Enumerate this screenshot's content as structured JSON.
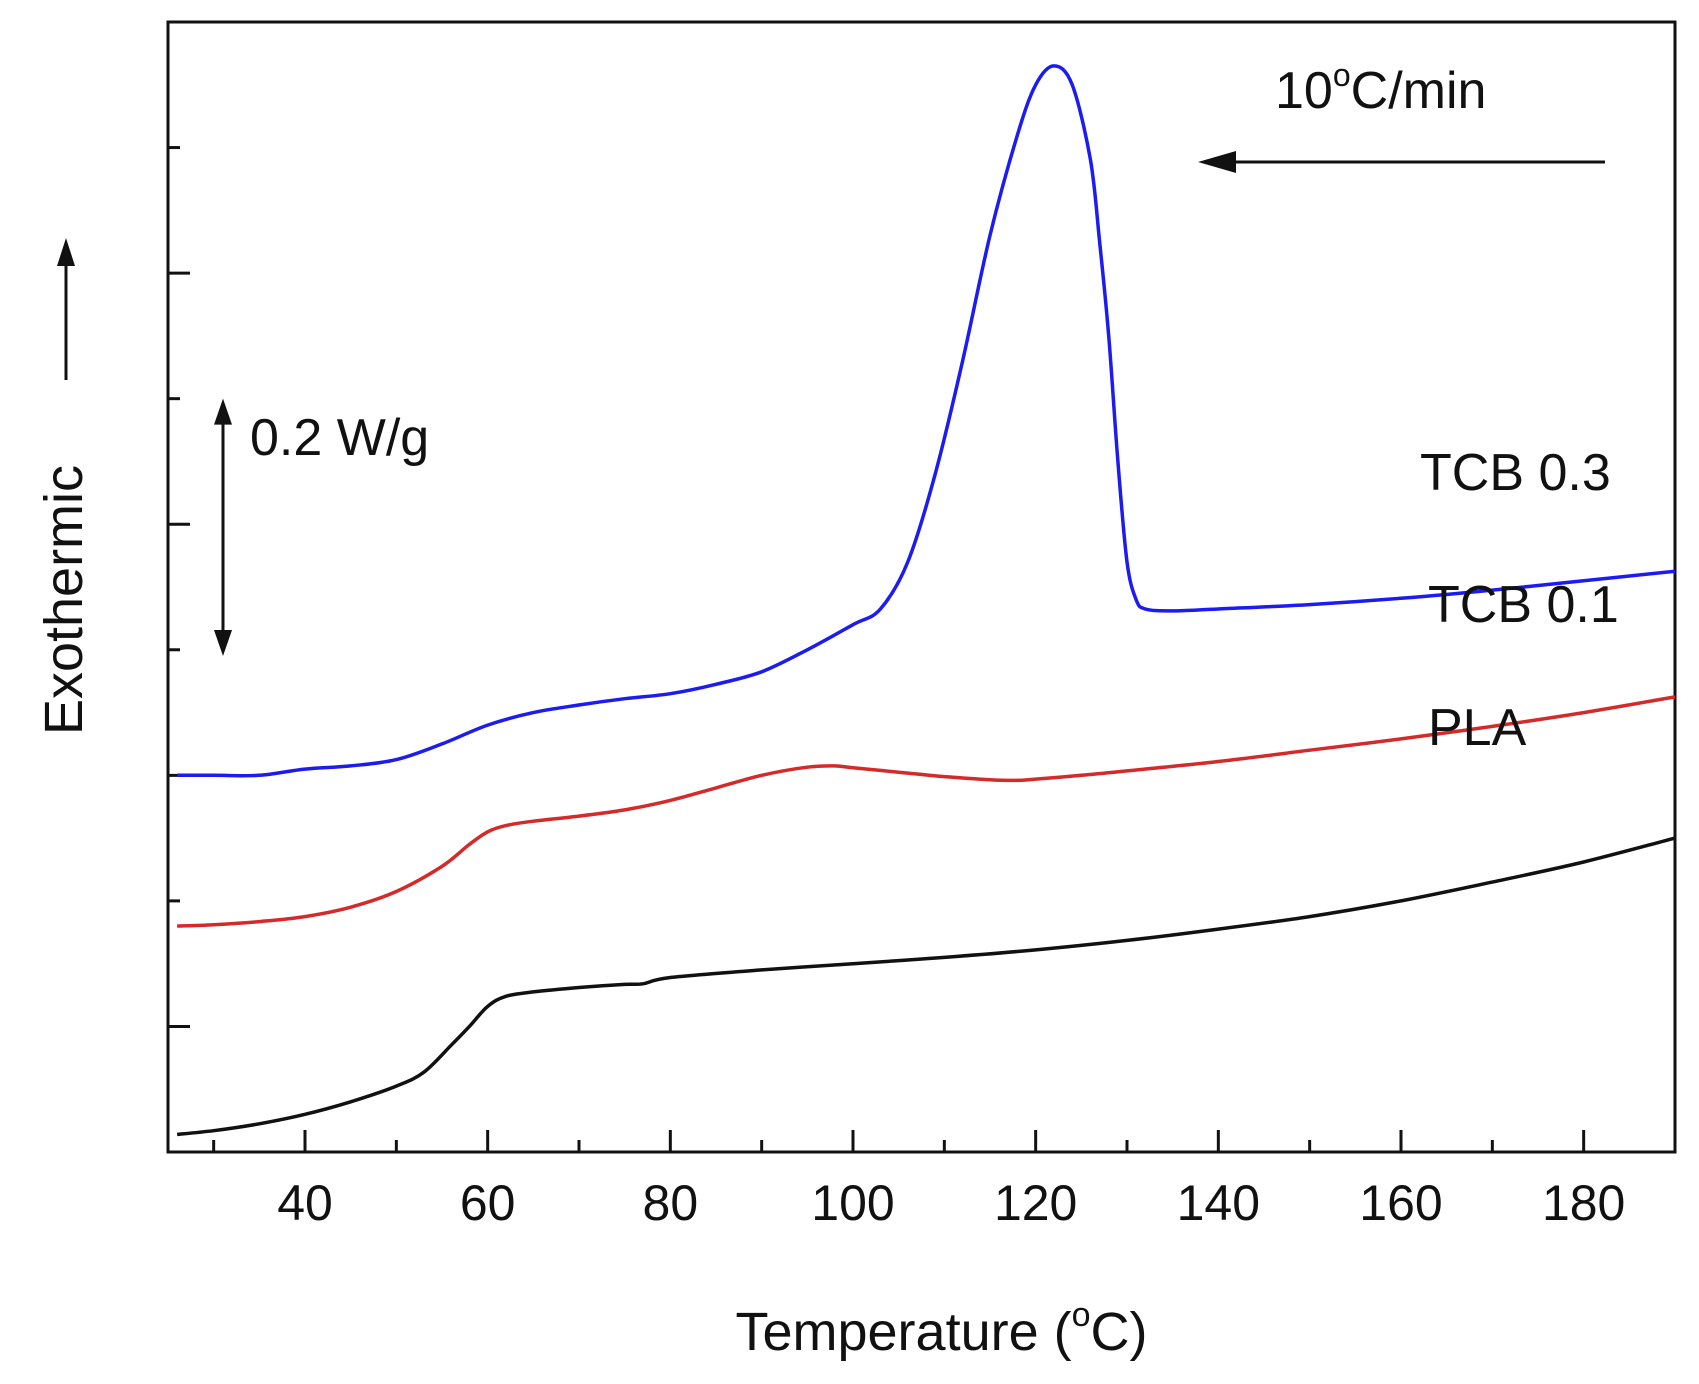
{
  "chart_data": {
    "type": "line",
    "title": "",
    "xlabel": "Temperature (°C)",
    "xlabel_parts": {
      "before": "Temperature (",
      "sup": "o",
      "after": "C)"
    },
    "ylabel": "Exothermic",
    "xlim": [
      25,
      190
    ],
    "ylim": [
      0,
      1.8
    ],
    "x_ticks": [
      40,
      60,
      80,
      100,
      120,
      140,
      160,
      180
    ],
    "x_tick_labels": [
      "40",
      "60",
      "80",
      "100",
      "120",
      "140",
      "160",
      "180"
    ],
    "y_major_ticks": [
      0.2,
      0.6,
      1.0,
      1.4
    ],
    "y_minor_ticks": [
      0.4,
      0.8,
      1.2,
      1.6
    ],
    "y_tick_labels_shown": false,
    "annotations": {
      "rate": {
        "value": "10",
        "sup": "o",
        "unit": "C/min",
        "text": "10 °C/min"
      },
      "scale": {
        "text": "0.2 W/g",
        "y_from": 0.79,
        "y_to": 1.2
      }
    },
    "series": [
      {
        "name": "TCB 0.3",
        "color": "#1c1cf0",
        "x": [
          26,
          30,
          35,
          40,
          45,
          50,
          55,
          60,
          65,
          70,
          75,
          80,
          85,
          90,
          95,
          100,
          103,
          106,
          109,
          112,
          115,
          118,
          120,
          122,
          124,
          126,
          127,
          128,
          129,
          130,
          131,
          132,
          135,
          140,
          150,
          160,
          170,
          180,
          190
        ],
        "y": [
          0.6,
          0.6,
          0.6,
          0.61,
          0.615,
          0.625,
          0.65,
          0.68,
          0.7,
          0.712,
          0.722,
          0.73,
          0.745,
          0.765,
          0.8,
          0.84,
          0.865,
          0.94,
          1.08,
          1.26,
          1.46,
          1.62,
          1.7,
          1.73,
          1.7,
          1.58,
          1.45,
          1.3,
          1.1,
          0.94,
          0.88,
          0.865,
          0.862,
          0.865,
          0.872,
          0.882,
          0.895,
          0.91,
          0.925
        ]
      },
      {
        "name": "TCB 0.1",
        "color": "#d42a2a",
        "x": [
          26,
          30,
          35,
          40,
          45,
          50,
          55,
          58,
          60,
          62,
          65,
          70,
          75,
          80,
          85,
          90,
          95,
          98,
          100,
          105,
          110,
          115,
          118,
          120,
          125,
          130,
          140,
          150,
          160,
          170,
          180,
          190
        ],
        "y": [
          0.36,
          0.362,
          0.367,
          0.375,
          0.39,
          0.415,
          0.455,
          0.49,
          0.51,
          0.52,
          0.527,
          0.535,
          0.545,
          0.56,
          0.58,
          0.6,
          0.613,
          0.615,
          0.612,
          0.605,
          0.598,
          0.593,
          0.592,
          0.594,
          0.6,
          0.607,
          0.622,
          0.64,
          0.658,
          0.678,
          0.7,
          0.725
        ]
      },
      {
        "name": "PLA",
        "color": "#111111",
        "x": [
          26,
          30,
          35,
          40,
          45,
          50,
          53,
          56,
          58,
          60,
          62,
          65,
          70,
          75,
          77,
          80,
          90,
          100,
          110,
          120,
          130,
          140,
          150,
          160,
          170,
          180,
          190
        ],
        "y": [
          0.028,
          0.034,
          0.045,
          0.06,
          0.08,
          0.105,
          0.127,
          0.17,
          0.2,
          0.232,
          0.248,
          0.255,
          0.262,
          0.267,
          0.268,
          0.278,
          0.29,
          0.3,
          0.31,
          0.322,
          0.337,
          0.355,
          0.375,
          0.4,
          0.43,
          0.462,
          0.5
        ]
      }
    ]
  }
}
